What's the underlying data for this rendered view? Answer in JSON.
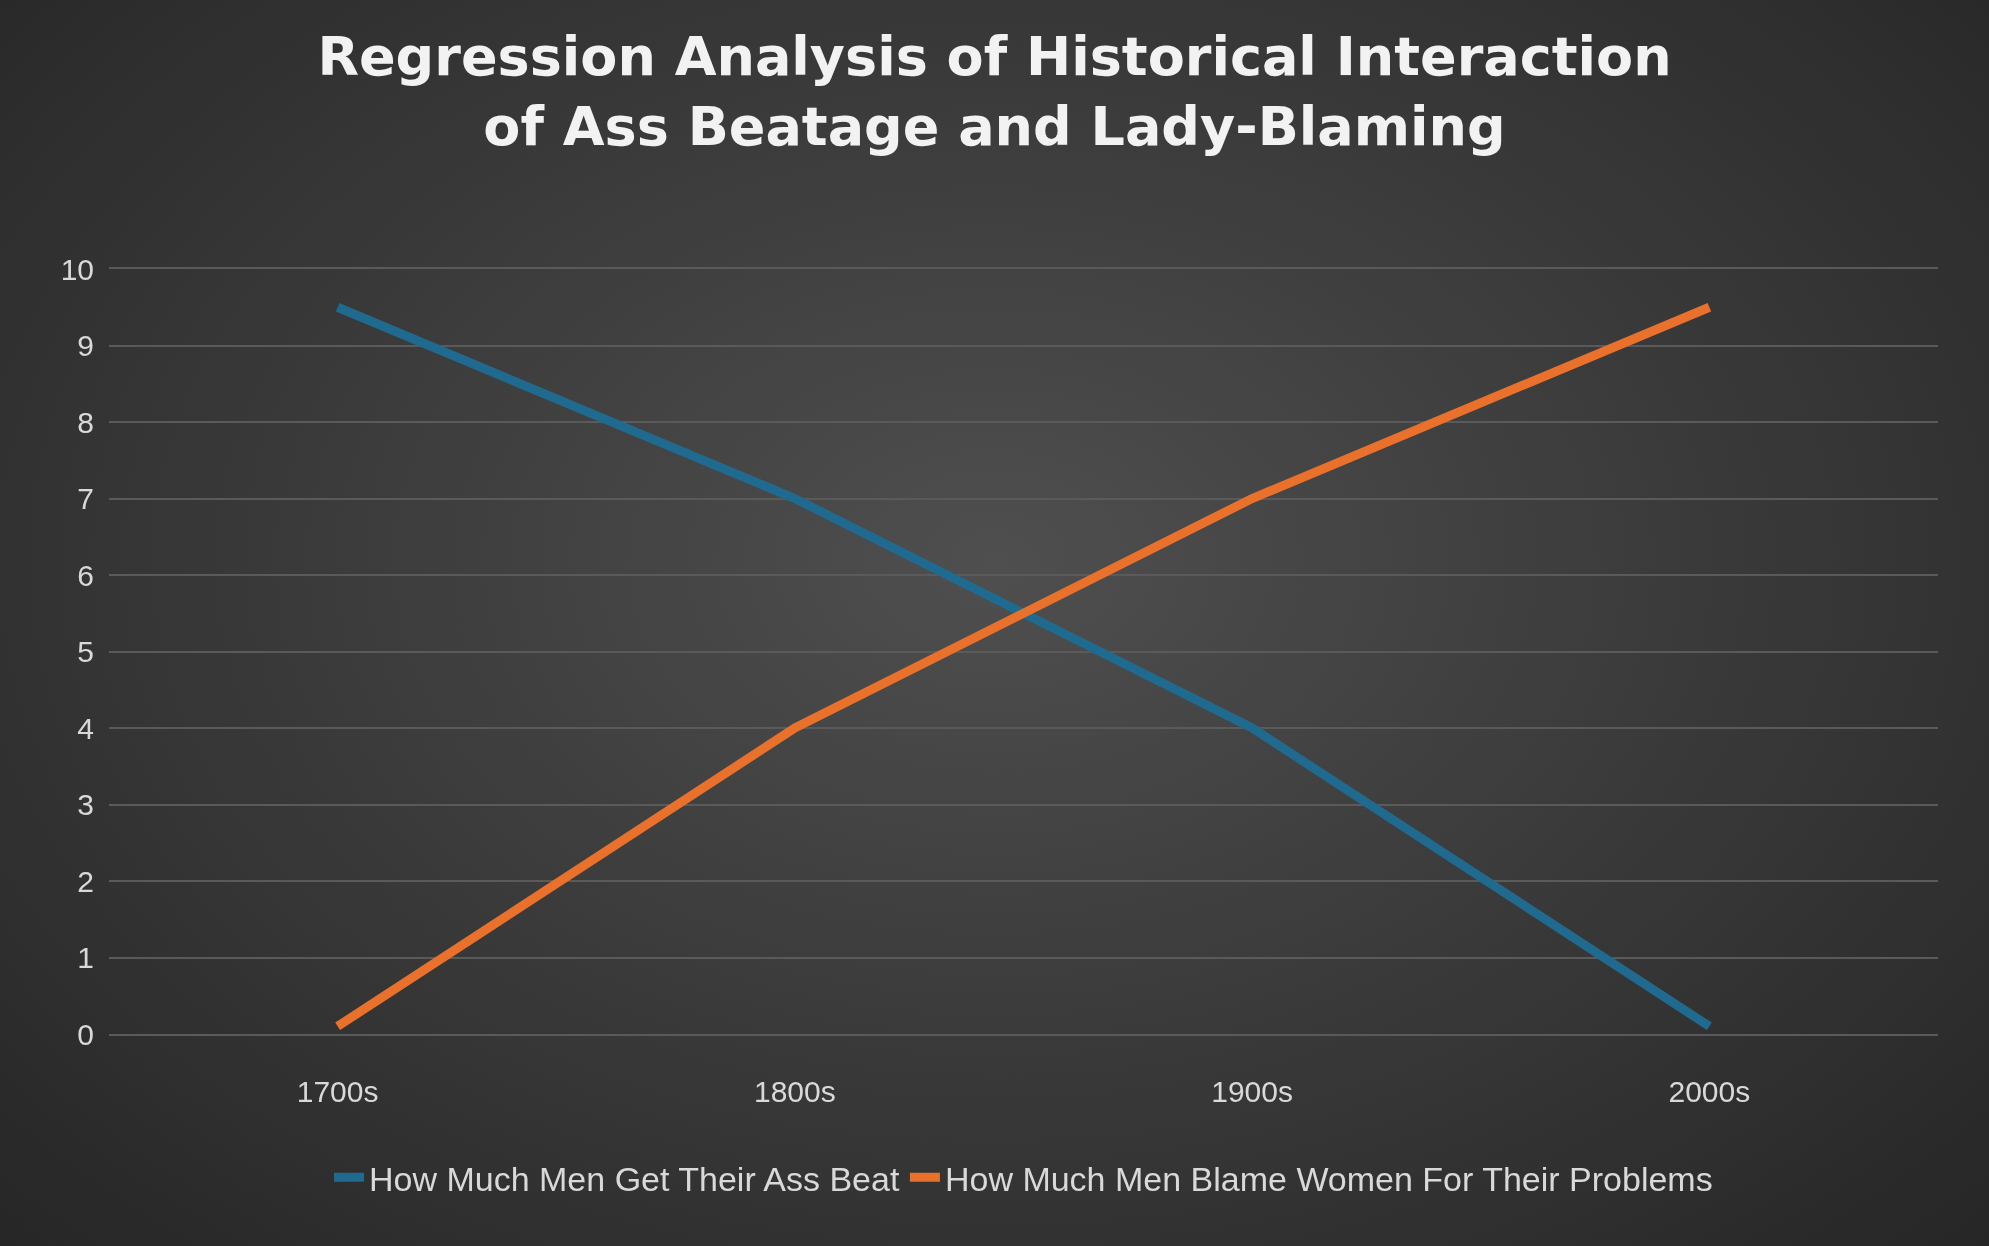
{
  "chart_data": {
    "type": "line",
    "title": "Regression Analysis of Historical Interaction\nof Ass Beatage and Lady-Blaming",
    "categories": [
      "1700s",
      "1800s",
      "1900s",
      "2000s"
    ],
    "series": [
      {
        "name": "How Much Men Get Their Ass Beat",
        "color": "#1f6a8e",
        "values": [
          9.5,
          7,
          4,
          0.1
        ]
      },
      {
        "name": "How Much Men Blame Women For Their Problems",
        "color": "#e9712c",
        "values": [
          0.1,
          4,
          7,
          9.5
        ]
      }
    ],
    "ylim": [
      0,
      10
    ],
    "yticks": [
      0,
      1,
      2,
      3,
      4,
      5,
      6,
      7,
      8,
      9,
      10
    ],
    "grid": "y",
    "legend": "bottom",
    "marker": "none",
    "line_style": "solid"
  }
}
